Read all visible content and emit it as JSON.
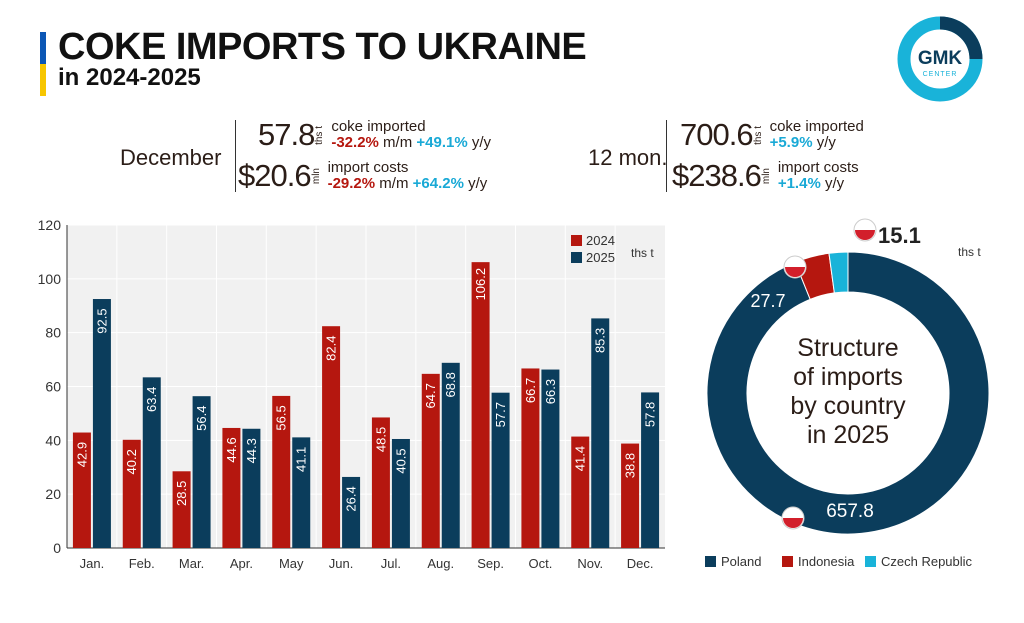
{
  "header": {
    "title": "COKE IMPORTS TO UKRAINE",
    "subtitle": "in 2024-2025",
    "logo_top": "GMK",
    "logo_bottom": "CENTER"
  },
  "december": {
    "label": "December",
    "volume": "57.8",
    "volume_unit": "ths t",
    "volume_desc": "coke imported",
    "volume_mm": "-32.2%",
    "mm": "m/m",
    "volume_yy": "+49.1%",
    "yy": "y/y",
    "cost": "$20.6",
    "cost_unit": "mln",
    "cost_desc": "import costs",
    "cost_mm": "-29.2%",
    "cost_yy": "+64.2%"
  },
  "year": {
    "label": "12 mon.",
    "volume": "700.6",
    "volume_unit": "ths t",
    "volume_desc": "coke imported",
    "volume_yy": "+5.9%",
    "yy": "y/y",
    "cost": "$238.6",
    "cost_unit": "mln",
    "cost_desc": "import costs",
    "cost_yy": "+1.4%"
  },
  "colors": {
    "s2024": "#b5170f",
    "s2025": "#0b3d5c",
    "czech": "#19b3d9"
  },
  "chart_data": [
    {
      "type": "bar",
      "unit": "ths t",
      "categories": [
        "Jan.",
        "Feb.",
        "Mar.",
        "Apr.",
        "May",
        "Jun.",
        "Jul.",
        "Aug.",
        "Sep.",
        "Oct.",
        "Nov.",
        "Dec."
      ],
      "series": [
        {
          "name": "2024",
          "values": [
            42.9,
            40.2,
            28.5,
            44.6,
            56.5,
            82.4,
            48.5,
            64.7,
            106.2,
            66.7,
            41.4,
            38.8
          ]
        },
        {
          "name": "2025",
          "values": [
            92.5,
            63.4,
            56.4,
            44.3,
            41.1,
            26.4,
            40.5,
            68.8,
            57.7,
            66.3,
            85.3,
            57.8
          ]
        }
      ],
      "ylim": [
        0,
        120
      ],
      "yticks": [
        0,
        20,
        40,
        60,
        80,
        100,
        120
      ],
      "grid": true,
      "legend": "top-right"
    },
    {
      "type": "pie",
      "title": "Structure of imports by country in 2025",
      "unit": "ths t",
      "slices": [
        {
          "name": "Poland",
          "value": 657.8,
          "label": "657.8"
        },
        {
          "name": "Indonesia",
          "value": 27.7,
          "label": "27.7"
        },
        {
          "name": "Czech Republic",
          "value": 15.1,
          "label": "15.1"
        }
      ],
      "legend": "bottom"
    }
  ]
}
